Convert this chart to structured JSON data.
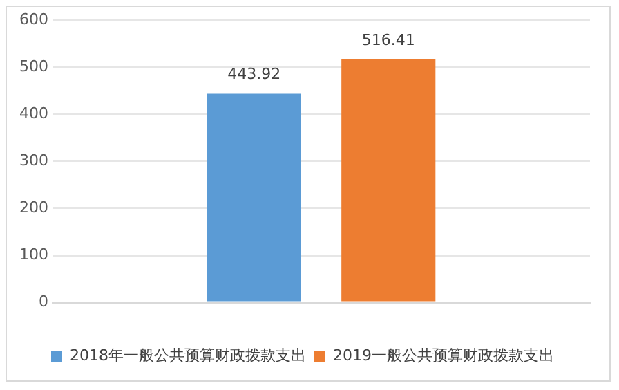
{
  "chart_data": {
    "type": "bar",
    "categories": [
      null
    ],
    "series": [
      {
        "name": "2018年一般公共预算财政拨款支出",
        "color": "#5b9bd5",
        "values": [
          443.92
        ]
      },
      {
        "name": "2019一般公共预算财政拨款支出",
        "color": "#ed7d31",
        "values": [
          516.41
        ]
      }
    ],
    "ylim": [
      0,
      600
    ],
    "yticks": [
      0,
      100,
      200,
      300,
      400,
      500,
      600
    ],
    "grid": "y",
    "legend": "bottom",
    "data_labels": true
  }
}
